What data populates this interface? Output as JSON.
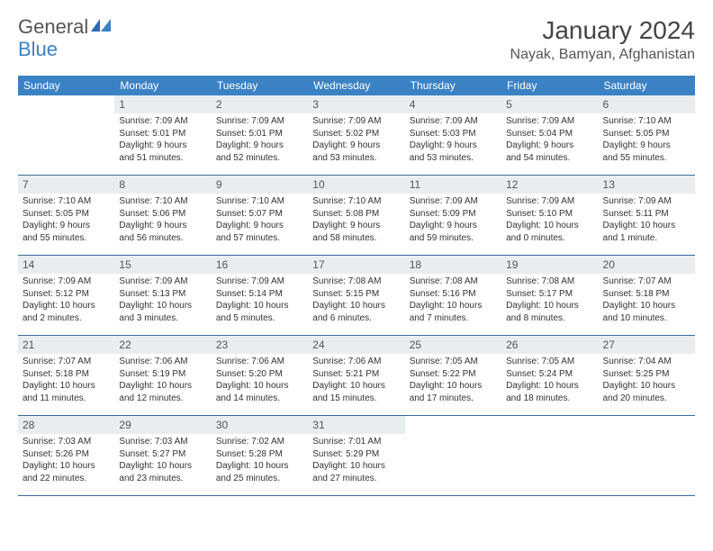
{
  "logo": {
    "text1": "General",
    "text2": "Blue"
  },
  "title": "January 2024",
  "location": "Nayak, Bamyan, Afghanistan",
  "colors": {
    "header_bg": "#3b82c4",
    "header_text": "#ffffff",
    "daynum_bg": "#e9edf0",
    "daynum_text": "#555555",
    "body_text": "#333333",
    "row_border": "#3b6a9a",
    "page_bg": "#ffffff",
    "title_text": "#444444",
    "location_text": "#555555",
    "logo_text": "#555555",
    "logo_accent": "#3b82c4"
  },
  "typography": {
    "title_fontsize": 28,
    "location_fontsize": 16,
    "weekday_fontsize": 12,
    "daynum_fontsize": 12,
    "body_fontsize": 10,
    "logo_fontsize": 22
  },
  "weekdays": [
    "Sunday",
    "Monday",
    "Tuesday",
    "Wednesday",
    "Thursday",
    "Friday",
    "Saturday"
  ],
  "weeks": [
    [
      {
        "n": "",
        "lines": [
          "",
          "",
          "",
          ""
        ]
      },
      {
        "n": "1",
        "lines": [
          "Sunrise: 7:09 AM",
          "Sunset: 5:01 PM",
          "Daylight: 9 hours",
          "and 51 minutes."
        ]
      },
      {
        "n": "2",
        "lines": [
          "Sunrise: 7:09 AM",
          "Sunset: 5:01 PM",
          "Daylight: 9 hours",
          "and 52 minutes."
        ]
      },
      {
        "n": "3",
        "lines": [
          "Sunrise: 7:09 AM",
          "Sunset: 5:02 PM",
          "Daylight: 9 hours",
          "and 53 minutes."
        ]
      },
      {
        "n": "4",
        "lines": [
          "Sunrise: 7:09 AM",
          "Sunset: 5:03 PM",
          "Daylight: 9 hours",
          "and 53 minutes."
        ]
      },
      {
        "n": "5",
        "lines": [
          "Sunrise: 7:09 AM",
          "Sunset: 5:04 PM",
          "Daylight: 9 hours",
          "and 54 minutes."
        ]
      },
      {
        "n": "6",
        "lines": [
          "Sunrise: 7:10 AM",
          "Sunset: 5:05 PM",
          "Daylight: 9 hours",
          "and 55 minutes."
        ]
      }
    ],
    [
      {
        "n": "7",
        "lines": [
          "Sunrise: 7:10 AM",
          "Sunset: 5:05 PM",
          "Daylight: 9 hours",
          "and 55 minutes."
        ]
      },
      {
        "n": "8",
        "lines": [
          "Sunrise: 7:10 AM",
          "Sunset: 5:06 PM",
          "Daylight: 9 hours",
          "and 56 minutes."
        ]
      },
      {
        "n": "9",
        "lines": [
          "Sunrise: 7:10 AM",
          "Sunset: 5:07 PM",
          "Daylight: 9 hours",
          "and 57 minutes."
        ]
      },
      {
        "n": "10",
        "lines": [
          "Sunrise: 7:10 AM",
          "Sunset: 5:08 PM",
          "Daylight: 9 hours",
          "and 58 minutes."
        ]
      },
      {
        "n": "11",
        "lines": [
          "Sunrise: 7:09 AM",
          "Sunset: 5:09 PM",
          "Daylight: 9 hours",
          "and 59 minutes."
        ]
      },
      {
        "n": "12",
        "lines": [
          "Sunrise: 7:09 AM",
          "Sunset: 5:10 PM",
          "Daylight: 10 hours",
          "and 0 minutes."
        ]
      },
      {
        "n": "13",
        "lines": [
          "Sunrise: 7:09 AM",
          "Sunset: 5:11 PM",
          "Daylight: 10 hours",
          "and 1 minute."
        ]
      }
    ],
    [
      {
        "n": "14",
        "lines": [
          "Sunrise: 7:09 AM",
          "Sunset: 5:12 PM",
          "Daylight: 10 hours",
          "and 2 minutes."
        ]
      },
      {
        "n": "15",
        "lines": [
          "Sunrise: 7:09 AM",
          "Sunset: 5:13 PM",
          "Daylight: 10 hours",
          "and 3 minutes."
        ]
      },
      {
        "n": "16",
        "lines": [
          "Sunrise: 7:09 AM",
          "Sunset: 5:14 PM",
          "Daylight: 10 hours",
          "and 5 minutes."
        ]
      },
      {
        "n": "17",
        "lines": [
          "Sunrise: 7:08 AM",
          "Sunset: 5:15 PM",
          "Daylight: 10 hours",
          "and 6 minutes."
        ]
      },
      {
        "n": "18",
        "lines": [
          "Sunrise: 7:08 AM",
          "Sunset: 5:16 PM",
          "Daylight: 10 hours",
          "and 7 minutes."
        ]
      },
      {
        "n": "19",
        "lines": [
          "Sunrise: 7:08 AM",
          "Sunset: 5:17 PM",
          "Daylight: 10 hours",
          "and 8 minutes."
        ]
      },
      {
        "n": "20",
        "lines": [
          "Sunrise: 7:07 AM",
          "Sunset: 5:18 PM",
          "Daylight: 10 hours",
          "and 10 minutes."
        ]
      }
    ],
    [
      {
        "n": "21",
        "lines": [
          "Sunrise: 7:07 AM",
          "Sunset: 5:18 PM",
          "Daylight: 10 hours",
          "and 11 minutes."
        ]
      },
      {
        "n": "22",
        "lines": [
          "Sunrise: 7:06 AM",
          "Sunset: 5:19 PM",
          "Daylight: 10 hours",
          "and 12 minutes."
        ]
      },
      {
        "n": "23",
        "lines": [
          "Sunrise: 7:06 AM",
          "Sunset: 5:20 PM",
          "Daylight: 10 hours",
          "and 14 minutes."
        ]
      },
      {
        "n": "24",
        "lines": [
          "Sunrise: 7:06 AM",
          "Sunset: 5:21 PM",
          "Daylight: 10 hours",
          "and 15 minutes."
        ]
      },
      {
        "n": "25",
        "lines": [
          "Sunrise: 7:05 AM",
          "Sunset: 5:22 PM",
          "Daylight: 10 hours",
          "and 17 minutes."
        ]
      },
      {
        "n": "26",
        "lines": [
          "Sunrise: 7:05 AM",
          "Sunset: 5:24 PM",
          "Daylight: 10 hours",
          "and 18 minutes."
        ]
      },
      {
        "n": "27",
        "lines": [
          "Sunrise: 7:04 AM",
          "Sunset: 5:25 PM",
          "Daylight: 10 hours",
          "and 20 minutes."
        ]
      }
    ],
    [
      {
        "n": "28",
        "lines": [
          "Sunrise: 7:03 AM",
          "Sunset: 5:26 PM",
          "Daylight: 10 hours",
          "and 22 minutes."
        ]
      },
      {
        "n": "29",
        "lines": [
          "Sunrise: 7:03 AM",
          "Sunset: 5:27 PM",
          "Daylight: 10 hours",
          "and 23 minutes."
        ]
      },
      {
        "n": "30",
        "lines": [
          "Sunrise: 7:02 AM",
          "Sunset: 5:28 PM",
          "Daylight: 10 hours",
          "and 25 minutes."
        ]
      },
      {
        "n": "31",
        "lines": [
          "Sunrise: 7:01 AM",
          "Sunset: 5:29 PM",
          "Daylight: 10 hours",
          "and 27 minutes."
        ]
      },
      {
        "n": "",
        "lines": [
          "",
          "",
          "",
          ""
        ]
      },
      {
        "n": "",
        "lines": [
          "",
          "",
          "",
          ""
        ]
      },
      {
        "n": "",
        "lines": [
          "",
          "",
          "",
          ""
        ]
      }
    ]
  ]
}
